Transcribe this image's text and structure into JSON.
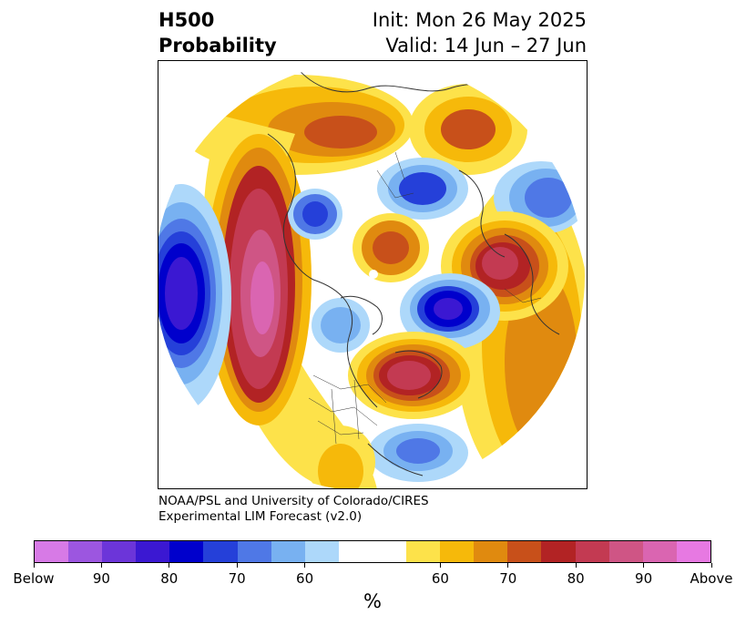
{
  "title": {
    "left_line1": "H500",
    "left_line2": "Probability",
    "right_line1": "Init: Mon 26 May 2025",
    "right_line2": "Valid: 14 Jun – 27 Jun"
  },
  "credit": {
    "line1": "NOAA/PSL and University of Colorado/CIRES",
    "line2": "Experimental LIM Forecast (v2.0)"
  },
  "colorbar": {
    "unit": "%",
    "colors": [
      "#d77ae6",
      "#9c56e0",
      "#6c35d9",
      "#3b18d2",
      "#0000cc",
      "#2540d9",
      "#4f78e6",
      "#78b1f1",
      "#add8fa",
      "#ffffff",
      "#ffffff",
      "#fde24a",
      "#f6b90a",
      "#e08a0f",
      "#c8501a",
      "#b22324",
      "#c33a52",
      "#cf5585",
      "#da65b1",
      "#e779e2"
    ],
    "tick_labels": [
      "Below",
      "90",
      "80",
      "70",
      "60",
      "60",
      "70",
      "80",
      "90",
      "Above"
    ]
  },
  "map": {
    "projection": "polar-stereographic-north",
    "map_extent": "Northern Hemisphere",
    "features": [
      "coastlines",
      "country-borders",
      "us-state-borders"
    ],
    "anomalies": [
      {
        "region": "North Pacific",
        "sign": "below",
        "peak_percent": 90
      },
      {
        "region": "Western North America",
        "sign": "above",
        "peak_percent": 90
      },
      {
        "region": "Eastern Canada",
        "sign": "above",
        "peak_percent": 90
      },
      {
        "region": "Northern Europe",
        "sign": "above",
        "peak_percent": 80
      },
      {
        "region": "Central Arctic",
        "sign": "below",
        "peak_percent": 70
      },
      {
        "region": "Central Asia",
        "sign": "above",
        "peak_percent": 80
      },
      {
        "region": "Northern Siberia",
        "sign": "below",
        "peak_percent": 80
      },
      {
        "region": "North Atlantic",
        "sign": "below",
        "peak_percent": 90
      },
      {
        "region": "Eastern Europe",
        "sign": "above",
        "peak_percent": 70
      },
      {
        "region": "East Asia",
        "sign": "below",
        "peak_percent": 70
      }
    ]
  }
}
